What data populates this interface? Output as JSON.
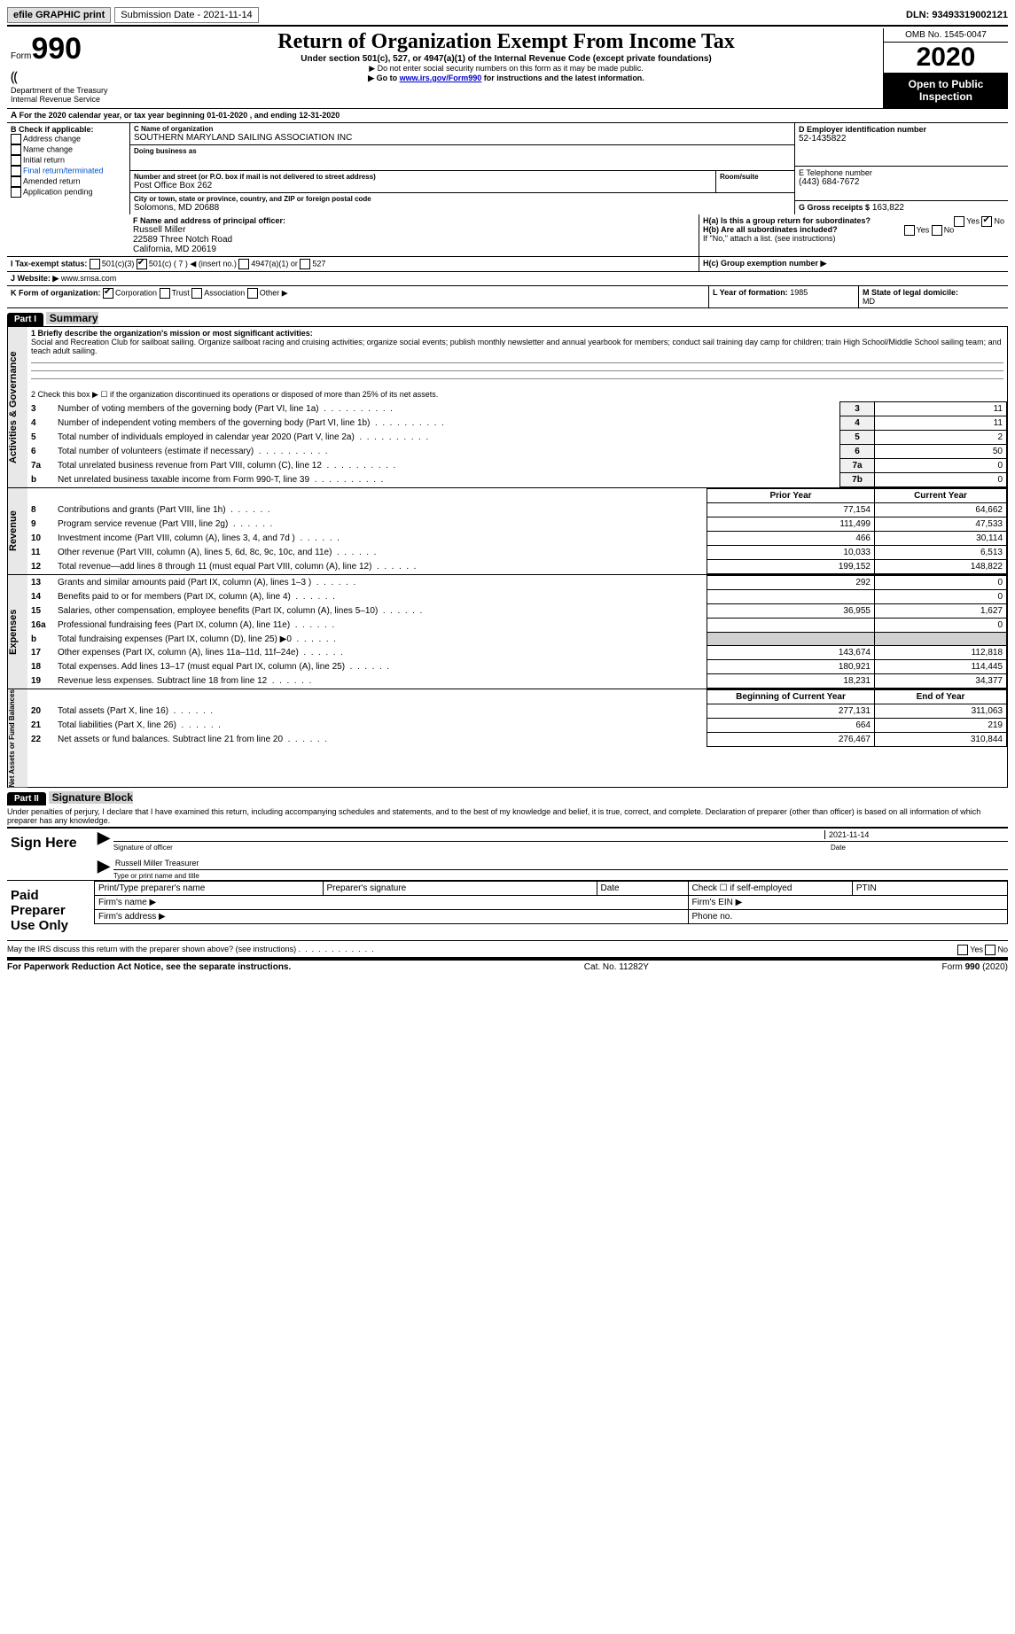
{
  "topbar": {
    "efile": "efile GRAPHIC print",
    "submission": "Submission Date - 2021-11-14",
    "dln": "DLN: 93493319002121"
  },
  "header": {
    "form_prefix": "Form",
    "form_no": "990",
    "dept": "Department of the Treasury",
    "irs": "Internal Revenue Service",
    "title": "Return of Organization Exempt From Income Tax",
    "sub1": "Under section 501(c), 527, or 4947(a)(1) of the Internal Revenue Code (except private foundations)",
    "sub2": "▶ Do not enter social security numbers on this form as it may be made public.",
    "sub3_pre": "▶ Go to ",
    "sub3_link": "www.irs.gov/Form990",
    "sub3_post": " for instructions and the latest information.",
    "omb": "OMB No. 1545-0047",
    "year": "2020",
    "open": "Open to Public Inspection"
  },
  "sectionA": {
    "pre": "A",
    "text": "For the 2020 calendar year, or tax year beginning 01-01-2020     , and ending 12-31-2020"
  },
  "sectionB": {
    "label": "B Check if applicable:",
    "items": [
      "Address change",
      "Name change",
      "Initial return",
      "Final return/terminated",
      "Amended return",
      "Application pending"
    ]
  },
  "sectionC": {
    "label": "C Name of organization",
    "name": "SOUTHERN MARYLAND SAILING ASSOCIATION INC",
    "dba_label": "Doing business as",
    "dba": "",
    "addr_label": "Number and street (or P.O. box if mail is not delivered to street address)",
    "room_label": "Room/suite",
    "addr": "Post Office Box 262",
    "city_label": "City or town, state or province, country, and ZIP or foreign postal code",
    "city": "Solomons, MD  20688"
  },
  "sectionD": {
    "label": "D Employer identification number",
    "value": "52-1435822"
  },
  "sectionE": {
    "label": "E Telephone number",
    "value": "(443) 684-7672"
  },
  "sectionG": {
    "label": "G Gross receipts $",
    "value": "163,822"
  },
  "sectionF": {
    "label": "F  Name and address of principal officer:",
    "name": "Russell Miller",
    "addr1": "22589 Three Notch Road",
    "addr2": "California, MD  20619"
  },
  "sectionH": {
    "a": "H(a)  Is this a group return for subordinates?",
    "b": "H(b)  Are all subordinates included?",
    "ifno": "If \"No,\" attach a list. (see instructions)",
    "c": "H(c)  Group exemption number ▶"
  },
  "sectionI": {
    "label": "I     Tax-exempt status:",
    "opt1": "501(c)(3)",
    "opt2": "501(c) ( 7 ) ◀ (insert no.)",
    "opt3": "4947(a)(1) or",
    "opt4": "527"
  },
  "sectionJ": {
    "label": "J     Website: ▶",
    "value": "www.smsa.com"
  },
  "sectionK": {
    "label": "K Form of organization:",
    "opts": [
      "Corporation",
      "Trust",
      "Association",
      "Other ▶"
    ]
  },
  "sectionL": {
    "label": "L Year of formation:",
    "value": "1985"
  },
  "sectionM": {
    "label": "M State of legal domicile:",
    "value": "MD"
  },
  "part1": {
    "header": "Part I",
    "title": "Summary",
    "line1label": "1  Briefly describe the organization's mission or most significant activities:",
    "line1text": "Social and Recreation Club for sailboat sailing. Organize sailboat racing and cruising activities; organize social events; publish monthly newsletter and annual yearbook for members; conduct sail training day camp for children; train High School/Middle School sailing team; and teach adult sailing.",
    "line2": "2   Check this box ▶ ☐ if the organization discontinued its operations or disposed of more than 25% of its net assets.",
    "vlabels": {
      "ag": "Activities & Governance",
      "rev": "Revenue",
      "exp": "Expenses",
      "na": "Net Assets or Fund Balances"
    },
    "ag_rows": [
      {
        "n": "3",
        "d": "Number of voting members of the governing body (Part VI, line 1a)",
        "c": "3",
        "v": "11"
      },
      {
        "n": "4",
        "d": "Number of independent voting members of the governing body (Part VI, line 1b)",
        "c": "4",
        "v": "11"
      },
      {
        "n": "5",
        "d": "Total number of individuals employed in calendar year 2020 (Part V, line 2a)",
        "c": "5",
        "v": "2"
      },
      {
        "n": "6",
        "d": "Total number of volunteers (estimate if necessary)",
        "c": "6",
        "v": "50"
      },
      {
        "n": "7a",
        "d": "Total unrelated business revenue from Part VIII, column (C), line 12",
        "c": "7a",
        "v": "0"
      },
      {
        "n": "b",
        "d": "Net unrelated business taxable income from Form 990-T, line 39",
        "c": "7b",
        "v": "0"
      }
    ],
    "col_prior": "Prior Year",
    "col_current": "Current Year",
    "rev_rows": [
      {
        "n": "8",
        "d": "Contributions and grants (Part VIII, line 1h)",
        "p": "77,154",
        "c": "64,662"
      },
      {
        "n": "9",
        "d": "Program service revenue (Part VIII, line 2g)",
        "p": "111,499",
        "c": "47,533"
      },
      {
        "n": "10",
        "d": "Investment income (Part VIII, column (A), lines 3, 4, and 7d )",
        "p": "466",
        "c": "30,114"
      },
      {
        "n": "11",
        "d": "Other revenue (Part VIII, column (A), lines 5, 6d, 8c, 9c, 10c, and 11e)",
        "p": "10,033",
        "c": "6,513"
      },
      {
        "n": "12",
        "d": "Total revenue—add lines 8 through 11 (must equal Part VIII, column (A), line 12)",
        "p": "199,152",
        "c": "148,822"
      }
    ],
    "exp_rows": [
      {
        "n": "13",
        "d": "Grants and similar amounts paid (Part IX, column (A), lines 1–3 )",
        "p": "292",
        "c": "0"
      },
      {
        "n": "14",
        "d": "Benefits paid to or for members (Part IX, column (A), line 4)",
        "p": "",
        "c": "0"
      },
      {
        "n": "15",
        "d": "Salaries, other compensation, employee benefits (Part IX, column (A), lines 5–10)",
        "p": "36,955",
        "c": "1,627"
      },
      {
        "n": "16a",
        "d": "Professional fundraising fees (Part IX, column (A), line 11e)",
        "p": "",
        "c": "0"
      },
      {
        "n": "b",
        "d": "Total fundraising expenses (Part IX, column (D), line 25) ▶0",
        "p": "shade",
        "c": "shade"
      },
      {
        "n": "17",
        "d": "Other expenses (Part IX, column (A), lines 11a–11d, 11f–24e)",
        "p": "143,674",
        "c": "112,818"
      },
      {
        "n": "18",
        "d": "Total expenses. Add lines 13–17 (must equal Part IX, column (A), line 25)",
        "p": "180,921",
        "c": "114,445"
      },
      {
        "n": "19",
        "d": "Revenue less expenses. Subtract line 18 from line 12",
        "p": "18,231",
        "c": "34,377"
      }
    ],
    "col_begin": "Beginning of Current Year",
    "col_end": "End of Year",
    "na_rows": [
      {
        "n": "20",
        "d": "Total assets (Part X, line 16)",
        "p": "277,131",
        "c": "311,063"
      },
      {
        "n": "21",
        "d": "Total liabilities (Part X, line 26)",
        "p": "664",
        "c": "219"
      },
      {
        "n": "22",
        "d": "Net assets or fund balances. Subtract line 21 from line 20",
        "p": "276,467",
        "c": "310,844"
      }
    ]
  },
  "part2": {
    "header": "Part II",
    "title": "Signature Block",
    "decl": "Under penalties of perjury, I declare that I have examined this return, including accompanying schedules and statements, and to the best of my knowledge and belief, it is true, correct, and complete. Declaration of preparer (other than officer) is based on all information of which preparer has any knowledge.",
    "sign_here": "Sign Here",
    "sig_officer": "Signature of officer",
    "sig_date": "Date",
    "sig_date_val": "2021-11-14",
    "sig_name_title": "Russell Miller  Treasurer",
    "type_name": "Type or print name and title",
    "paid": "Paid Preparer Use Only",
    "print_name": "Print/Type preparer's name",
    "prep_sig": "Preparer's signature",
    "date": "Date",
    "check_if": "Check ☐ if self-employed",
    "ptin": "PTIN",
    "firm_name": "Firm's name    ▶",
    "firm_ein": "Firm's EIN ▶",
    "firm_addr": "Firm's address ▶",
    "phone": "Phone no.",
    "discuss": "May the IRS discuss this return with the preparer shown above? (see instructions)",
    "yes": "Yes",
    "no": "No"
  },
  "footer": {
    "pra": "For Paperwork Reduction Act Notice, see the separate instructions.",
    "cat": "Cat. No. 11282Y",
    "form": "Form 990 (2020)"
  }
}
